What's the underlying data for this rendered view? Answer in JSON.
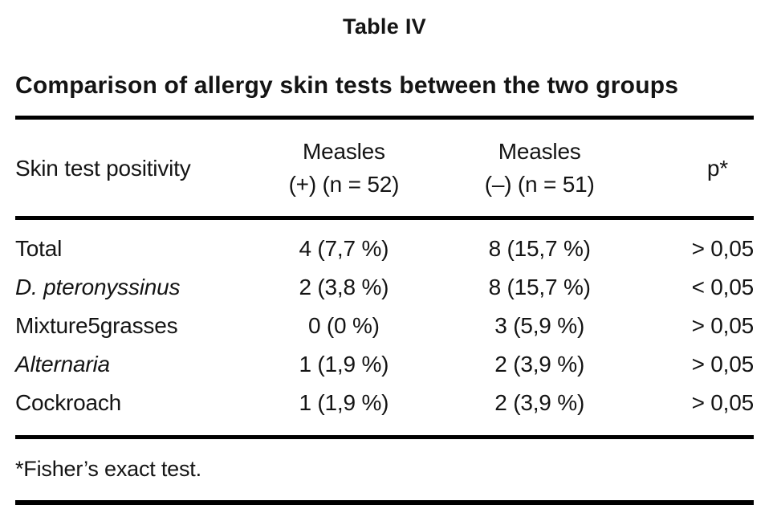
{
  "page": {
    "title": "Table IV",
    "subtitle": "Comparison of allergy skin tests between the two groups",
    "footnote": "*Fisher’s exact test."
  },
  "table": {
    "header": {
      "col1": "Skin test positivity",
      "col2_line1": "Measles",
      "col2_line2": "(+) (n = 52)",
      "col3_line1": "Measles",
      "col3_line2": "(–) (n = 51)",
      "col4": "p*"
    },
    "rows": [
      {
        "label": "Total",
        "measles_pos": "4 (7,7 %)",
        "measles_neg": "8 (15,7 %)",
        "p_value": "> 0,05"
      },
      {
        "label": "D. pteronyssinus",
        "measles_pos": "2 (3,8 %)",
        "measles_neg": "8 (15,7 %)",
        "p_value": "< 0,05"
      },
      {
        "label": "Mixture5grasses",
        "measles_pos": "0 (0 %)",
        "measles_neg": "3 (5,9 %)",
        "p_value": "> 0,05"
      },
      {
        "label": "Alternaria",
        "measles_pos": "1 (1,9 %)",
        "measles_neg": "2 (3,9 %)",
        "p_value": "> 0,05"
      },
      {
        "label": "Cockroach",
        "measles_pos": "1 (1,9 %)",
        "measles_neg": "2 (3,9 %)",
        "p_value": "> 0,05"
      }
    ]
  }
}
